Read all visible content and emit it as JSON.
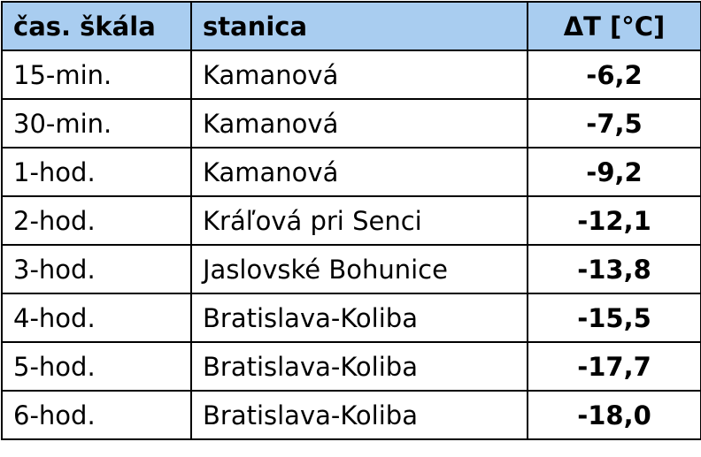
{
  "table": {
    "header": [
      "čas. škála",
      "stanica",
      "ΔT [°C]"
    ],
    "rows": [
      [
        "15-min.",
        "Kamanová",
        "-6,2"
      ],
      [
        "30-min.",
        "Kamanová",
        "-7,5"
      ],
      [
        "1-hod.",
        "Kamanová",
        "-9,2"
      ],
      [
        "2-hod.",
        "Kráľová pri Senci",
        "-12,1"
      ],
      [
        "3-hod.",
        "Jaslovské Bohunice",
        "-13,8"
      ],
      [
        "4-hod.",
        "Bratislava-Koliba",
        "-15,5"
      ],
      [
        "5-hod.",
        "Bratislava-Koliba",
        "-17,7"
      ],
      [
        "6-hod.",
        "Bratislava-Koliba",
        "-18,0"
      ]
    ]
  }
}
